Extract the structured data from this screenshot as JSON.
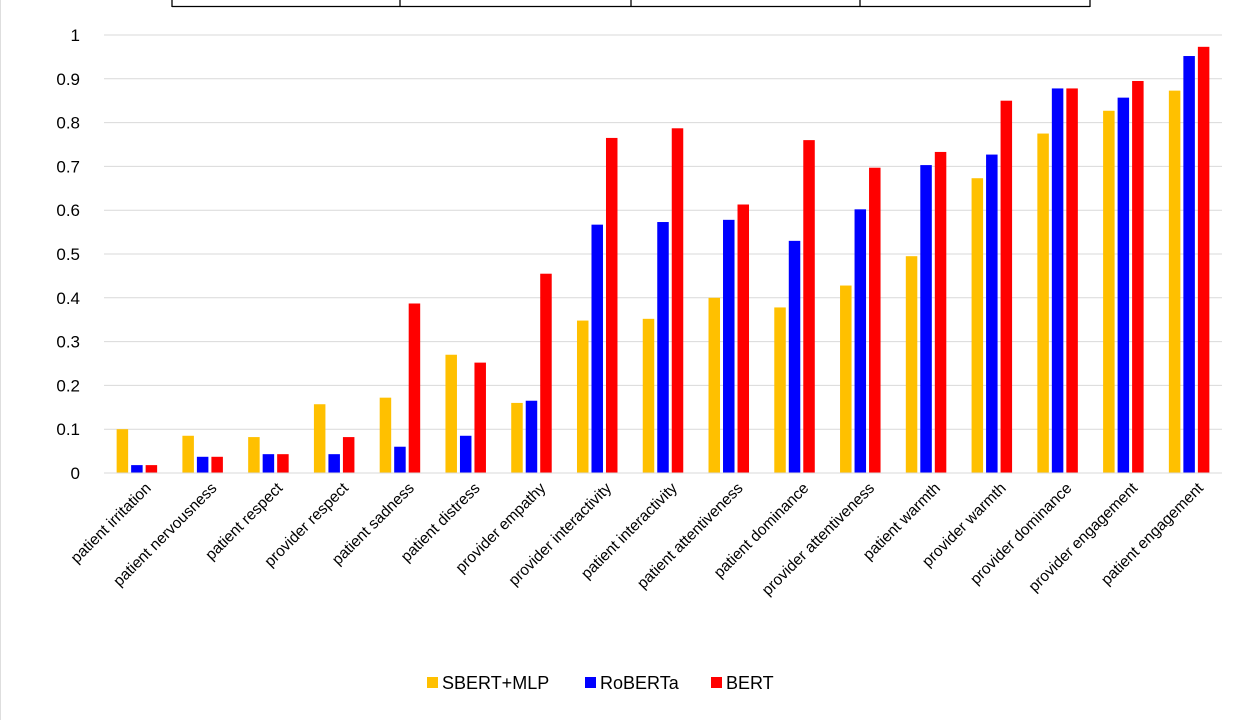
{
  "chart_data": {
    "type": "bar",
    "categories": [
      "patient irritation",
      "patient nervousness",
      "patient respect",
      "provider respect",
      "patient sadness",
      "patient distress",
      "provider empathy",
      "provider interactivity",
      "patient interactivity",
      "patient attentiveness",
      "patient dominance",
      "provider attentiveness",
      "patient warmth",
      "provider warmth",
      "provider dominance",
      "provider engagement",
      "patient engagement"
    ],
    "series": [
      {
        "name": "SBERT+MLP",
        "color": "#FFC000",
        "values": [
          0.1,
          0.085,
          0.082,
          0.157,
          0.172,
          0.27,
          0.16,
          0.348,
          0.352,
          0.4,
          0.378,
          0.428,
          0.495,
          0.673,
          0.775,
          0.827,
          0.873
        ]
      },
      {
        "name": "RoBERTa",
        "color": "#0000FF",
        "values": [
          0.018,
          0.037,
          0.043,
          0.043,
          0.06,
          0.085,
          0.165,
          0.567,
          0.573,
          0.578,
          0.53,
          0.602,
          0.703,
          0.727,
          0.878,
          0.857,
          0.952
        ]
      },
      {
        "name": "BERT",
        "color": "#FF0000",
        "values": [
          0.018,
          0.037,
          0.043,
          0.082,
          0.387,
          0.252,
          0.455,
          0.765,
          0.787,
          0.613,
          0.76,
          0.697,
          0.733,
          0.85,
          0.878,
          0.895,
          0.973
        ]
      }
    ],
    "yticks": [
      "0",
      "0.1",
      "0.2",
      "0.3",
      "0.4",
      "0.5",
      "0.6",
      "0.7",
      "0.8",
      "0.9",
      "1"
    ],
    "ylim": [
      0,
      1
    ],
    "grid": true,
    "legend_position": "bottom"
  }
}
